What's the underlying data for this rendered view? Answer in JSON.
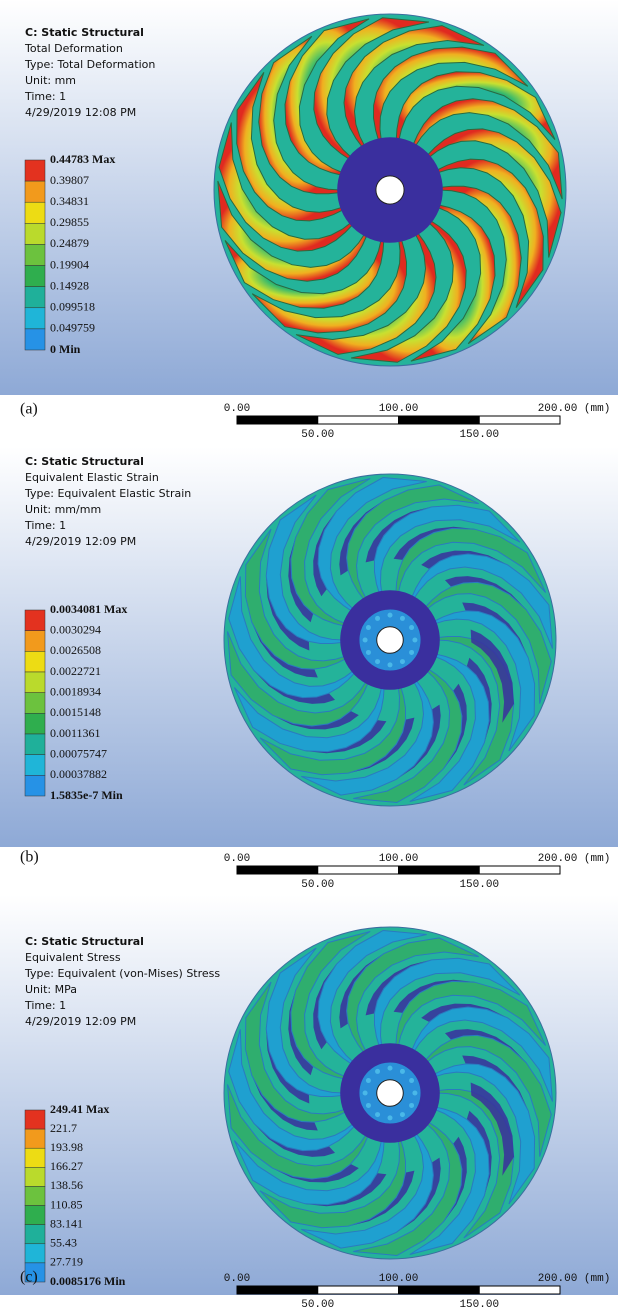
{
  "panels": [
    {
      "header": [
        "C: Static Structural",
        "Total Deformation",
        "Type: Total Deformation",
        "Unit: mm",
        "Time: 1",
        "4/29/2019 12:08 PM"
      ],
      "legend": [
        "0.44783 Max",
        "0.39807",
        "0.34831",
        "0.29855",
        "0.24879",
        "0.19904",
        "0.14928",
        "0.099518",
        "0.049759",
        "0 Min"
      ],
      "caption": "(a)",
      "scale": {
        "top": [
          "0.00",
          "100.00",
          "200.00 (mm)"
        ],
        "bottom": [
          "50.00",
          "150.00"
        ]
      }
    },
    {
      "header": [
        "C: Static Structural",
        "Equivalent Elastic Strain",
        "Type: Equivalent Elastic Strain",
        "Unit: mm/mm",
        "Time: 1",
        "4/29/2019 12:09 PM"
      ],
      "legend": [
        "0.0034081 Max",
        "0.0030294",
        "0.0026508",
        "0.0022721",
        "0.0018934",
        "0.0015148",
        "0.0011361",
        "0.00075747",
        "0.00037882",
        "1.5835e-7 Min"
      ],
      "caption": "(b)",
      "scale": {
        "top": [
          "0.00",
          "100.00",
          "200.00 (mm)"
        ],
        "bottom": [
          "50.00",
          "150.00"
        ]
      }
    },
    {
      "header": [
        "C: Static Structural",
        "Equivalent Stress",
        "Type: Equivalent (von-Mises) Stress",
        "Unit: MPa",
        "Time: 1",
        "4/29/2019 12:09 PM"
      ],
      "legend": [
        "249.41 Max",
        "221.7",
        "193.98",
        "166.27",
        "138.56",
        "110.85",
        "83.141",
        "55.43",
        "27.719",
        "0.0085176 Min"
      ],
      "caption": "(c)",
      "scale": {
        "top": [
          "0.00",
          "100.00",
          "200.00 (mm)"
        ],
        "bottom": [
          "50.00",
          "150.00"
        ]
      }
    }
  ]
}
